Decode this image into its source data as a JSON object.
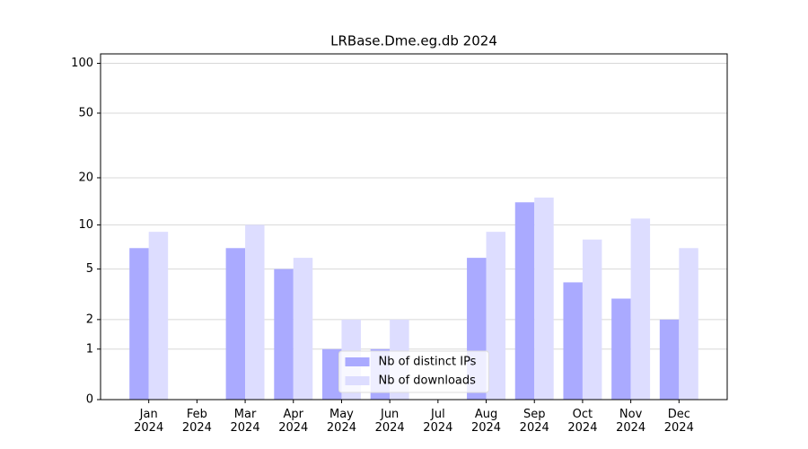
{
  "chart_data": {
    "type": "bar",
    "title": "LRBase.Dme.eg.db 2024",
    "categories": [
      "Jan\n2024",
      "Feb\n2024",
      "Mar\n2024",
      "Apr\n2024",
      "May\n2024",
      "Jun\n2024",
      "Jul\n2024",
      "Aug\n2024",
      "Sep\n2024",
      "Oct\n2024",
      "Nov\n2024",
      "Dec\n2024"
    ],
    "series": [
      {
        "name": "Nb of distinct IPs",
        "color": "#aaaaff",
        "values": [
          7,
          0,
          7,
          5,
          1,
          1,
          0,
          6,
          14,
          4,
          3,
          2
        ]
      },
      {
        "name": "Nb of downloads",
        "color": "#ddddff",
        "values": [
          9,
          0,
          10,
          6,
          2,
          2,
          0,
          9,
          15,
          8,
          11,
          7
        ]
      }
    ],
    "yscale": "log1p",
    "ylim": [
      0,
      114
    ],
    "yticks": [
      0,
      1,
      2,
      5,
      10,
      20,
      50,
      100
    ],
    "grid": true,
    "legend": "lower center"
  }
}
